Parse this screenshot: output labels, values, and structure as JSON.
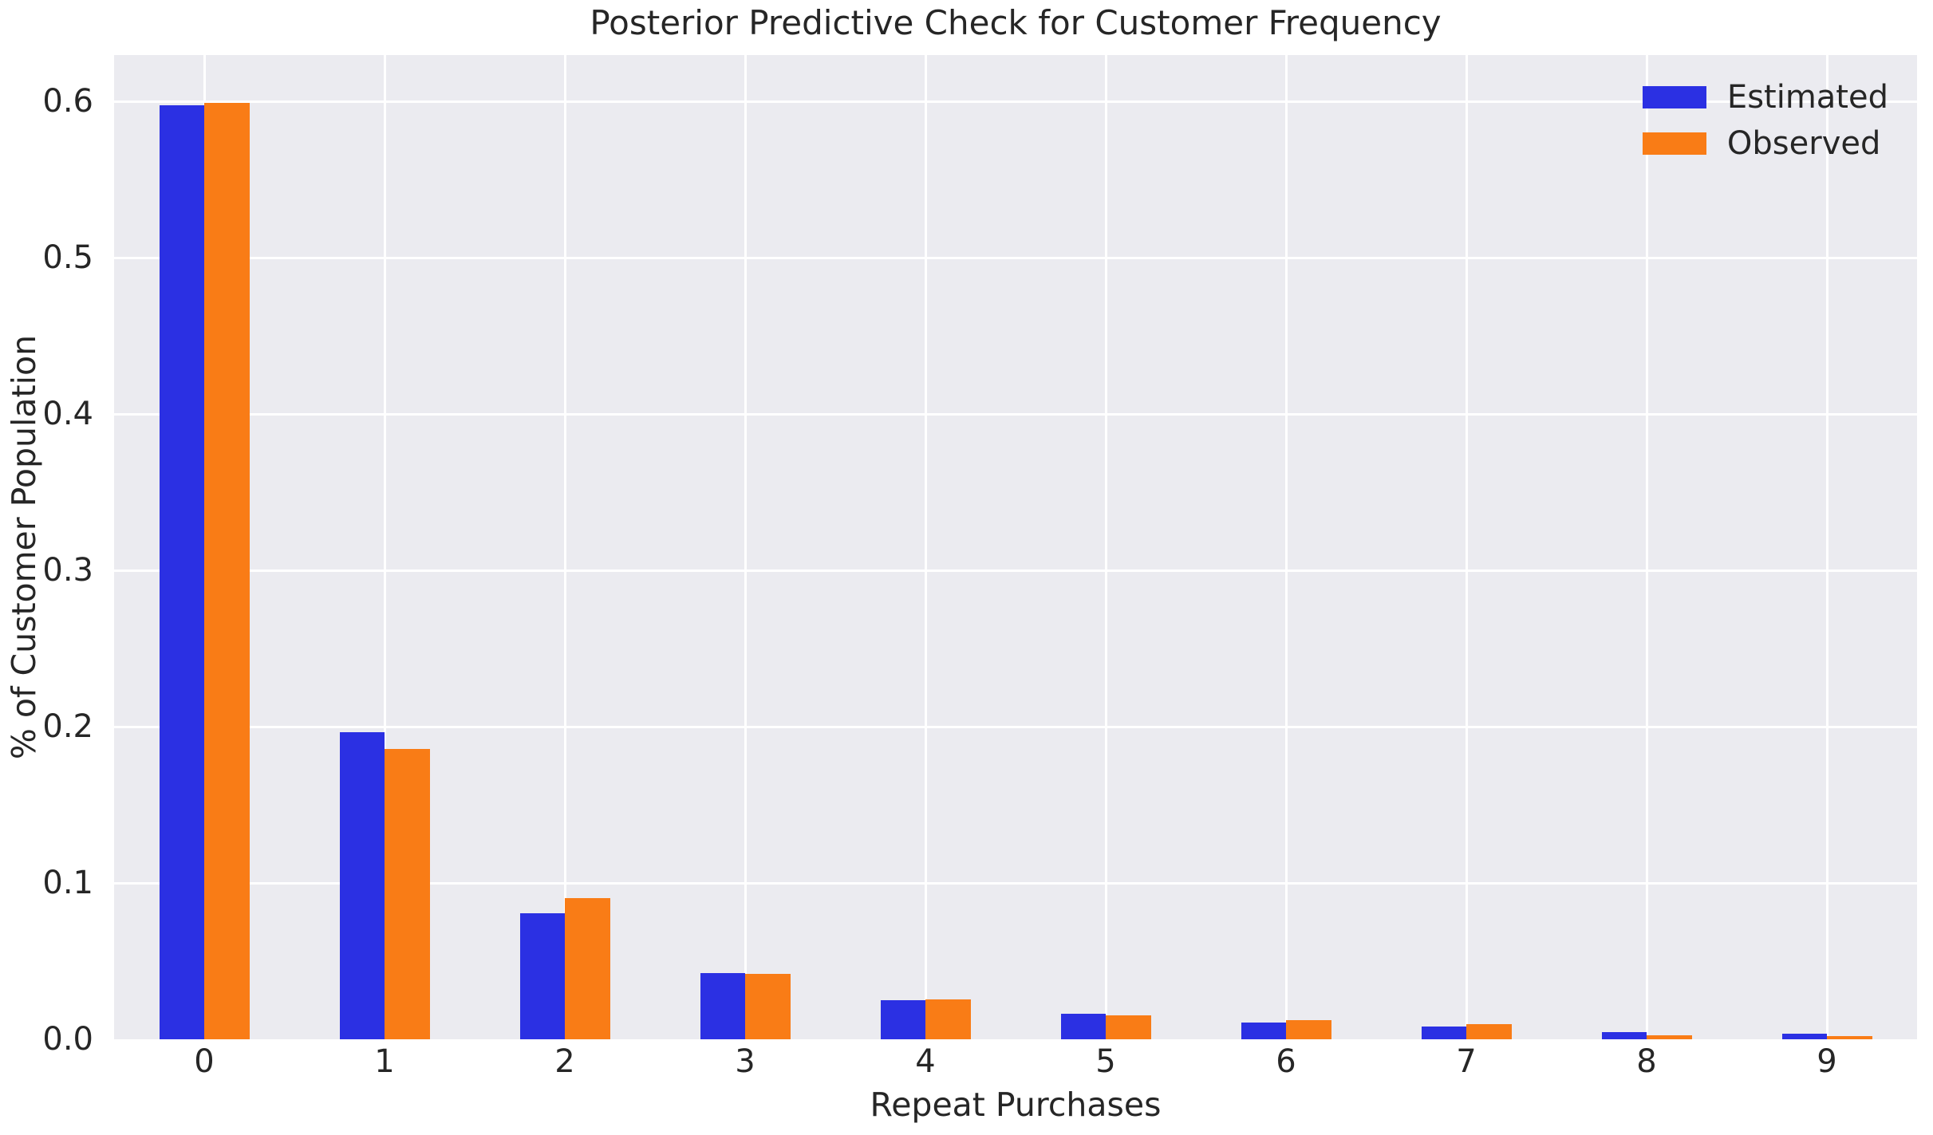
{
  "chart_data": {
    "type": "bar",
    "title": "Posterior Predictive Check for Customer Frequency",
    "xlabel": "Repeat Purchases",
    "ylabel": "% of Customer Population",
    "categories": [
      "0",
      "1",
      "2",
      "3",
      "4",
      "5",
      "6",
      "7",
      "8",
      "9"
    ],
    "series": [
      {
        "name": "Estimated",
        "color": "#2B30E3",
        "values": [
          0.5975,
          0.1964,
          0.0805,
          0.0424,
          0.025,
          0.0163,
          0.0107,
          0.0082,
          0.0046,
          0.0036
        ]
      },
      {
        "name": "Observed",
        "color": "#F97C16",
        "values": [
          0.599,
          0.1855,
          0.0902,
          0.0419,
          0.0255,
          0.0153,
          0.0122,
          0.0097,
          0.0026,
          0.0018
        ]
      }
    ],
    "ylim": [
      0,
      0.6296
    ],
    "yticks": [
      "0.0",
      "0.1",
      "0.2",
      "0.3",
      "0.4",
      "0.5",
      "0.6"
    ],
    "ytick_values": [
      0,
      0.1,
      0.2,
      0.3,
      0.4,
      0.5,
      0.6
    ],
    "grid": "on",
    "grid_style": "white horizontal and vertical gridlines over light grey plot background, no axis spines, no tick marks",
    "legend_position": "upper right",
    "bar_group_width_fraction": 0.5
  },
  "colors": {
    "figure_background": "#FFFFFF",
    "plot_background": "#EBEBF0",
    "gridline": "#FFFFFF",
    "text": "#262626",
    "estimated_bar": "#2B30E3",
    "observed_bar": "#F97C16"
  }
}
